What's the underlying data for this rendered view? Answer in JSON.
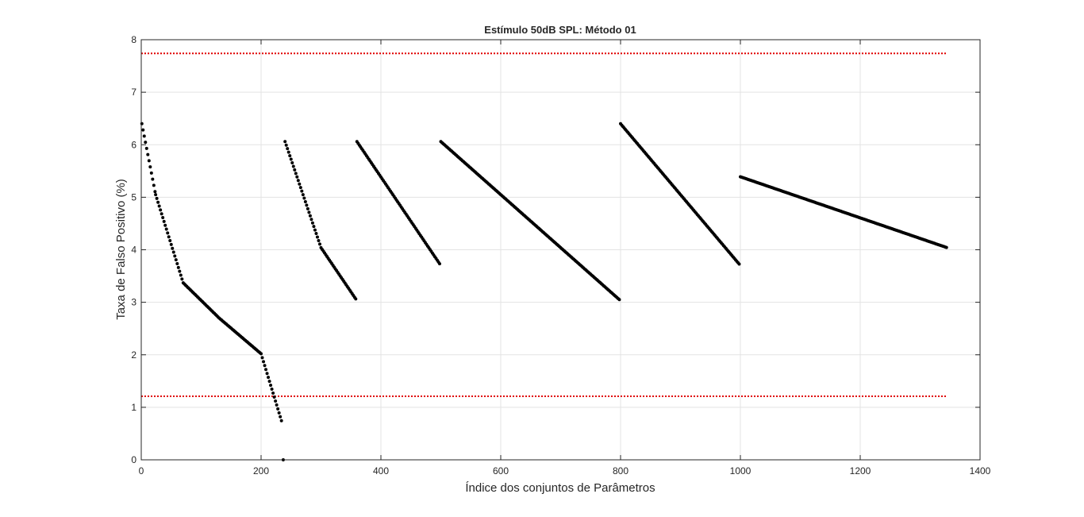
{
  "chart_data": {
    "type": "scatter",
    "title": "Estímulo 50dB SPL: Método 01",
    "xlabel": "Índice dos conjuntos de Parâmetros",
    "ylabel": "Taxa de Falso Positivo (%)",
    "xlim": [
      0,
      1400
    ],
    "ylim": [
      0,
      8
    ],
    "xticks": [
      0,
      200,
      400,
      600,
      800,
      1000,
      1200,
      1400
    ],
    "yticks": [
      0,
      1,
      2,
      3,
      4,
      5,
      6,
      7,
      8
    ],
    "grid": true,
    "colors": {
      "points": "#000000",
      "limits": "#e00000",
      "grid": "#e3e3e3",
      "axes": "#262626"
    },
    "reference_lines": [
      {
        "y": 7.74,
        "x_range": [
          0,
          1343
        ],
        "style": "dotted",
        "color": "#e00000"
      },
      {
        "y": 1.21,
        "x_range": [
          0,
          1343
        ],
        "style": "dotted",
        "color": "#e00000"
      }
    ],
    "series": [
      {
        "segments": [
          {
            "x": [
              1,
              24
            ],
            "start": 6.4,
            "end": 5.05
          },
          {
            "x": [
              24,
              70
            ],
            "start": 5.05,
            "end": 3.37
          },
          {
            "x": [
              70,
              130
            ],
            "start": 3.37,
            "end": 2.7
          },
          {
            "x": [
              130,
              200
            ],
            "start": 2.7,
            "end": 2.02
          },
          {
            "x": [
              200,
              236
            ],
            "start": 2.02,
            "end": 0.67
          }
        ],
        "point": [
          237,
          0
        ]
      },
      {
        "segments": [
          {
            "x": [
              240,
              300
            ],
            "start": 6.06,
            "end": 4.04
          },
          {
            "x": [
              300,
              360
            ],
            "start": 4.04,
            "end": 3.03
          },
          {
            "x": [
              360,
              500
            ],
            "start": 6.06,
            "end": 3.7
          },
          {
            "x": [
              500,
              800
            ],
            "start": 6.06,
            "end": 3.03
          },
          {
            "x": [
              800,
              1000
            ],
            "start": 6.4,
            "end": 3.7
          },
          {
            "x": [
              1000,
              1345
            ],
            "start": 5.39,
            "end": 4.04
          }
        ]
      }
    ]
  }
}
